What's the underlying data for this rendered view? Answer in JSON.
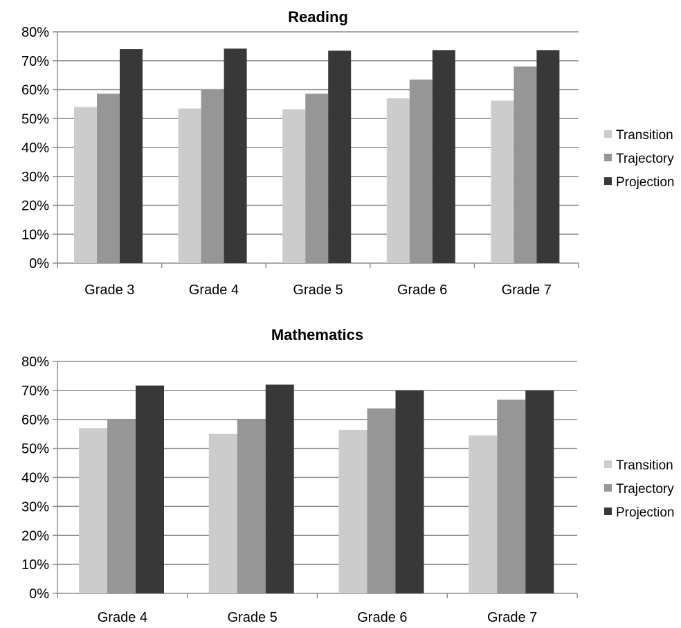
{
  "chart_data": [
    {
      "type": "bar",
      "title": "Reading",
      "categories": [
        "Grade 3",
        "Grade 4",
        "Grade 5",
        "Grade 6",
        "Grade 7"
      ],
      "series": [
        {
          "name": "Transition",
          "color": "#cccccc",
          "values": [
            0.54,
            0.535,
            0.532,
            0.57,
            0.562
          ]
        },
        {
          "name": "Trajectory",
          "color": "#969696",
          "values": [
            0.586,
            0.6,
            0.586,
            0.635,
            0.68
          ]
        },
        {
          "name": "Projection",
          "color": "#383838",
          "values": [
            0.74,
            0.742,
            0.735,
            0.737,
            0.737
          ]
        }
      ],
      "ylim": [
        0,
        0.8
      ],
      "yticks": [
        "0%",
        "10%",
        "20%",
        "30%",
        "40%",
        "50%",
        "60%",
        "70%",
        "80%"
      ],
      "grid": true,
      "legend_position": "right",
      "xlabel": "",
      "ylabel": ""
    },
    {
      "type": "bar",
      "title": "Mathematics",
      "categories": [
        "Grade 4",
        "Grade 5",
        "Grade 6",
        "Grade 7"
      ],
      "series": [
        {
          "name": "Transition",
          "color": "#cccccc",
          "values": [
            0.57,
            0.55,
            0.564,
            0.545
          ]
        },
        {
          "name": "Trajectory",
          "color": "#969696",
          "values": [
            0.6,
            0.6,
            0.638,
            0.668
          ]
        },
        {
          "name": "Projection",
          "color": "#383838",
          "values": [
            0.717,
            0.72,
            0.7,
            0.7
          ]
        }
      ],
      "ylim": [
        0,
        0.8
      ],
      "yticks": [
        "0%",
        "10%",
        "20%",
        "30%",
        "40%",
        "50%",
        "60%",
        "70%",
        "80%"
      ],
      "grid": true,
      "legend_position": "right",
      "xlabel": "",
      "ylabel": ""
    }
  ]
}
